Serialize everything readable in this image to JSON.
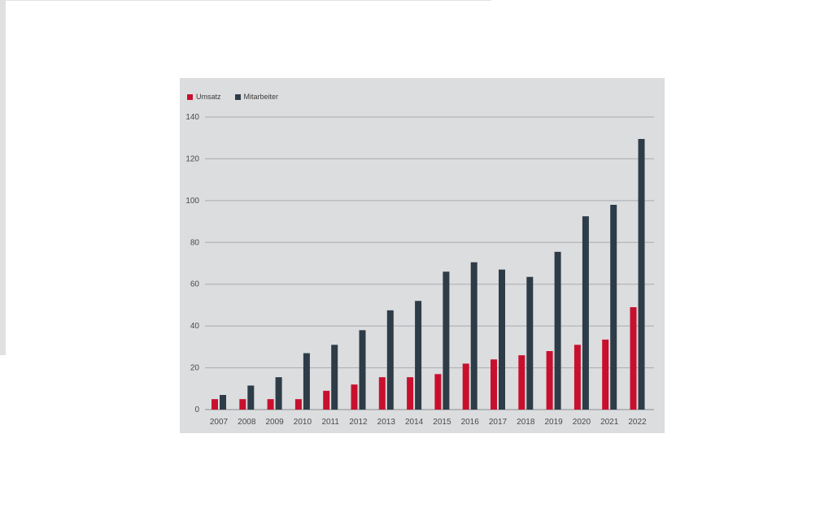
{
  "chart_data": {
    "type": "bar",
    "title": "",
    "xlabel": "",
    "ylabel": "",
    "ylim": [
      0,
      140
    ],
    "yticks": [
      0,
      20,
      40,
      60,
      80,
      100,
      120,
      140
    ],
    "grid": true,
    "legend_position": "top-left",
    "categories": [
      "2007",
      "2008",
      "2009",
      "2010",
      "2011",
      "2012",
      "2013",
      "2014",
      "2015",
      "2016",
      "2017",
      "2018",
      "2019",
      "2020",
      "2021",
      "2022"
    ],
    "series": [
      {
        "name": "Umsatz",
        "color": "#c8102e",
        "values": [
          5,
          5,
          5,
          5,
          9,
          12,
          15.5,
          15.5,
          17,
          22,
          24,
          26,
          28,
          31,
          33.5,
          49
        ]
      },
      {
        "name": "Mitarbeiter",
        "color": "#2e3c48",
        "values": [
          7,
          11.5,
          15.5,
          27,
          31,
          38,
          47.5,
          52,
          66,
          70.5,
          67,
          63.5,
          75.5,
          92.5,
          98,
          129.5
        ]
      }
    ]
  }
}
